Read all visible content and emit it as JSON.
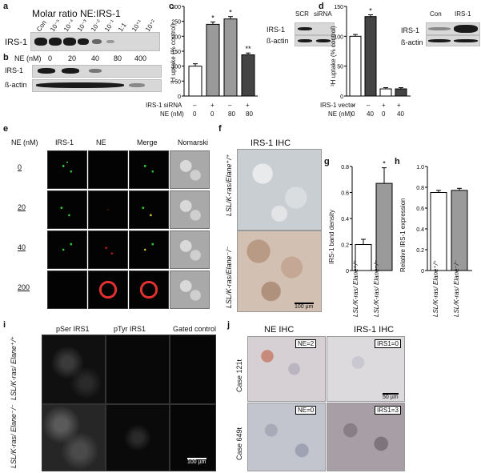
{
  "panels": {
    "a": "a",
    "b": "b",
    "c": "c",
    "d": "d",
    "e": "e",
    "f": "f",
    "g": "g",
    "h": "h",
    "i": "i",
    "j": "j"
  },
  "panel_a": {
    "title": "Molar ratio NE:IRS-1",
    "lanes": [
      "Con",
      "10⁻⁵",
      "10⁻⁴",
      "10⁻³",
      "10⁻²",
      "10⁻¹",
      "1:1",
      "10⁺¹",
      "10⁺²"
    ],
    "row_label": "IRS-1"
  },
  "panel_b": {
    "ne_label": "NE (nM)",
    "doses": [
      "0",
      "20",
      "40",
      "80",
      "400"
    ],
    "rows": [
      "IRS-1",
      "ß-actin"
    ]
  },
  "panel_c": {
    "ylabel": "³H uptake (% control)",
    "yticks": [
      "0",
      "50",
      "100",
      "150",
      "200",
      "250",
      "300"
    ],
    "row1_label": "IRS-1 siRNA",
    "row1": [
      "–",
      "+",
      "–",
      "+"
    ],
    "row2_label": "NE (nM)",
    "row2": [
      "0",
      "0",
      "80",
      "80"
    ],
    "stars": [
      "",
      "*",
      "*",
      "**"
    ],
    "blot_cols": [
      "SCR",
      "siRNA"
    ],
    "blot_rows": [
      "IRS-1",
      "ß-actin"
    ]
  },
  "panel_d": {
    "ylabel": "³H uptake (% control)",
    "yticks": [
      "0",
      "50",
      "100",
      "150"
    ],
    "row1_label": "IRS-1 vector",
    "row1": [
      "–",
      "–",
      "+",
      "+"
    ],
    "row2_label": "NE (nM)",
    "row2": [
      "0",
      "40",
      "0",
      "40"
    ],
    "stars": [
      "",
      "*",
      "",
      ""
    ],
    "blot_cols": [
      "Con",
      "IRS-1"
    ],
    "blot_rows": [
      "IRS-1",
      "ß-actin"
    ]
  },
  "panel_e": {
    "ne_label": "NE (nM)",
    "cols": [
      "IRS-1",
      "NE",
      "Merge",
      "Nomarski"
    ],
    "rows": [
      "0",
      "20",
      "40",
      "200"
    ]
  },
  "panel_f": {
    "title": "IRS-1 IHC",
    "rows": [
      "LSL/K-ras/Elane⁺/⁺",
      "LSL/K-ras/Elane⁻/⁻"
    ],
    "scale": "100 µm"
  },
  "panel_g": {
    "ylabel": "IRS-1 band density",
    "yticks": [
      "0",
      "0.2",
      "0.4",
      "0.6",
      "0.8"
    ],
    "categories": [
      "LSL/K-ras/ Elane⁺/⁺",
      "LSL/K-ras/ Elane⁻/⁻"
    ],
    "star": "*"
  },
  "panel_h": {
    "ylabel": "Relative IRS-1 expression",
    "yticks": [
      "0",
      "0.2",
      "0.4",
      "0.6",
      "0.8",
      "1.0"
    ],
    "categories": [
      "LSL/K-ras/ Elane⁺/⁺",
      "LSL/K-ras/ Elane⁻/⁻"
    ]
  },
  "panel_i": {
    "cols": [
      "pSer IRS1",
      "pTyr IRS1",
      "Gated control"
    ],
    "rows": [
      "LSL/K-ras/ Elane⁺/⁺",
      "LSL/K-ras/ Elane⁻/⁻"
    ],
    "scale": "100 µm"
  },
  "panel_j": {
    "cols": [
      "NE IHC",
      "IRS-1 IHC"
    ],
    "rows": [
      "Case 121t",
      "Case 649t"
    ],
    "scores": [
      "NE=2",
      "IRS1=0",
      "NE=0",
      "IRS1=3"
    ],
    "scale": "50 µm"
  },
  "chart_data": [
    {
      "type": "bar",
      "panel": "c",
      "categories": [
        "1",
        "2",
        "3",
        "4"
      ],
      "values": [
        100,
        240,
        258,
        138
      ],
      "errors": [
        8,
        8,
        8,
        6
      ],
      "ylim": [
        0,
        300
      ],
      "colors": [
        "#ffffff",
        "#9a9a9a",
        "#9a9a9a",
        "#444444"
      ]
    },
    {
      "type": "bar",
      "panel": "d",
      "categories": [
        "1",
        "2",
        "3",
        "4"
      ],
      "values": [
        100,
        133,
        12,
        12
      ],
      "errors": [
        3,
        3,
        2,
        2
      ],
      "ylim": [
        0,
        150
      ],
      "colors": [
        "#ffffff",
        "#444444",
        "#ffffff",
        "#444444"
      ]
    },
    {
      "type": "bar",
      "panel": "g",
      "categories": [
        "LSL/K-ras/ Elane⁺/⁺",
        "LSL/K-ras/ Elane⁻/⁻"
      ],
      "values": [
        0.2,
        0.67
      ],
      "errors": [
        0.04,
        0.12
      ],
      "ylim": [
        0,
        0.8
      ],
      "colors": [
        "#ffffff",
        "#9a9a9a"
      ]
    },
    {
      "type": "bar",
      "panel": "h",
      "categories": [
        "LSL/K-ras/ Elane⁺/⁺",
        "LSL/K-ras/ Elane⁻/⁻"
      ],
      "values": [
        0.75,
        0.77
      ],
      "errors": [
        0.02,
        0.02
      ],
      "ylim": [
        0,
        1.0
      ],
      "colors": [
        "#ffffff",
        "#9a9a9a"
      ]
    }
  ]
}
